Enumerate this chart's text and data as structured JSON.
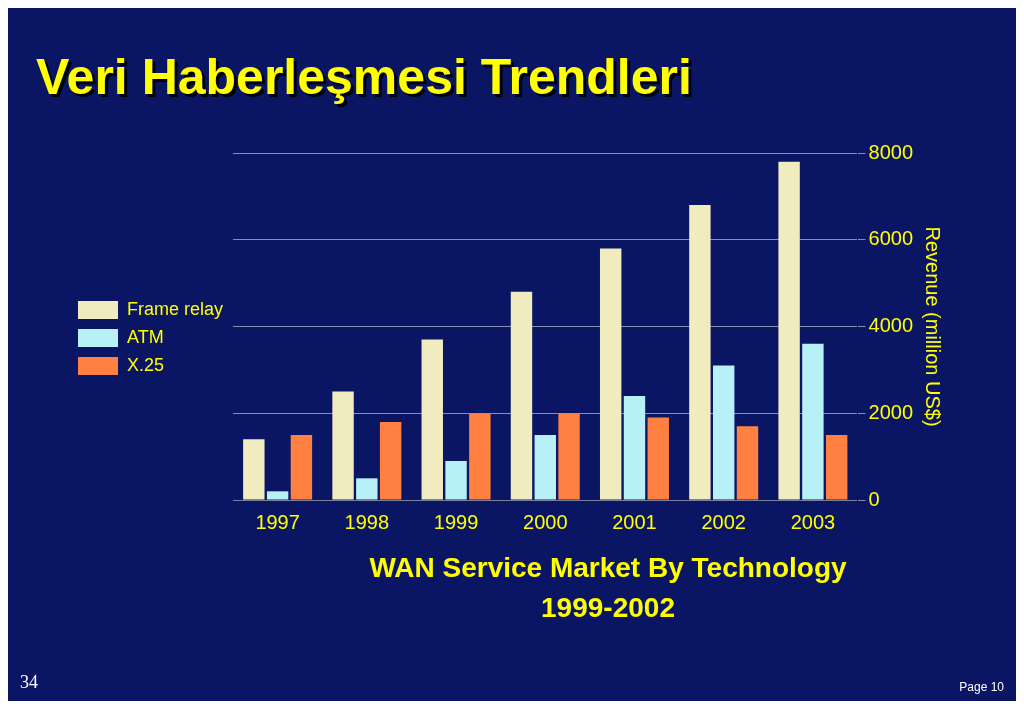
{
  "chart_data": {
    "type": "bar",
    "title": "Veri Haberleşmesi Trendleri",
    "categories": [
      "1997",
      "1998",
      "1999",
      "2000",
      "2001",
      "2002",
      "2003"
    ],
    "series": [
      {
        "name": "Frame relay",
        "color": "#f0ecc0",
        "values": [
          1400,
          2500,
          3700,
          4800,
          5800,
          6800,
          7800
        ]
      },
      {
        "name": "ATM",
        "color": "#b8f0f8",
        "values": [
          200,
          500,
          900,
          1500,
          2400,
          3100,
          3600
        ]
      },
      {
        "name": "X.25",
        "color": "#ff8040",
        "values": [
          1500,
          1800,
          2000,
          2000,
          1900,
          1700,
          1500
        ]
      }
    ],
    "ylabel": "Revenue (million US$)",
    "ylim": [
      0,
      8000
    ],
    "yticks": [
      0,
      2000,
      4000,
      6000,
      8000
    ],
    "grid": "y",
    "legend": "left",
    "annotations": [
      "WAN Service Market By Technology",
      "1999-2002",
      "34",
      "Page 10"
    ]
  }
}
